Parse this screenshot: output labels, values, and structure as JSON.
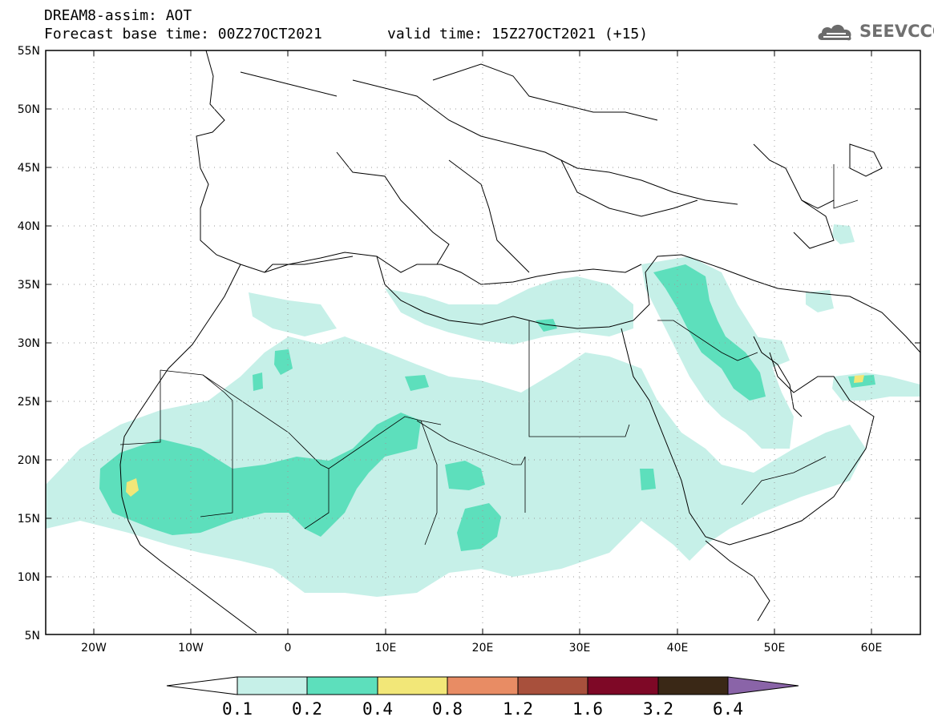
{
  "header": {
    "line1": "DREAM8-assim: AOT",
    "line2_left": "Forecast base time: 00Z27OCT2021",
    "line2_right": "valid time: 15Z27OCT2021 (+15)"
  },
  "logo": {
    "text": "SEEVCCC",
    "icon": "cloud-icon"
  },
  "map": {
    "projection": "lat-lon",
    "lon_range": [
      -25,
      65
    ],
    "lat_range": [
      5,
      55
    ],
    "lat_ticks": [
      "55N",
      "50N",
      "45N",
      "40N",
      "35N",
      "30N",
      "25N",
      "20N",
      "15N",
      "10N",
      "5N"
    ],
    "lon_ticks": [
      "20W",
      "10W",
      "0",
      "10E",
      "20E",
      "30E",
      "40E",
      "50E",
      "60E"
    ],
    "grid": "dotted"
  },
  "colorbar": {
    "levels": [
      "0.1",
      "0.2",
      "0.4",
      "0.8",
      "1.2",
      "1.6",
      "3.2",
      "6.4"
    ],
    "colors": [
      "#c6f0e8",
      "#5ddfbc",
      "#f2e778",
      "#e88c64",
      "#a8503c",
      "#7e0826",
      "#3a2816",
      "#8a64a8"
    ],
    "under_color": "#ffffff"
  }
}
